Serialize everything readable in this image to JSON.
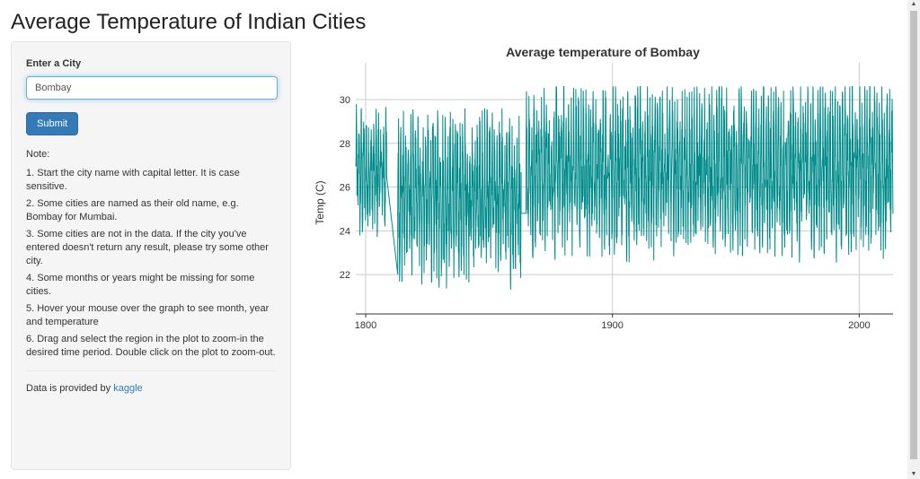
{
  "page": {
    "title": "Average Temperature of Indian Cities"
  },
  "sidebar": {
    "city_label": "Enter a City",
    "city_value": "Bombay",
    "submit_label": "Submit",
    "note_heading": "Note:",
    "notes": [
      "1. Start the city name with capital letter. It is case sensitive.",
      "2. Some cities are named as their old name, e.g. Bombay for Mumbai.",
      "3. Some cities are not in the data. If the city you've entered doesn't return any result, please try some other city.",
      "4. Some months or years might be missing for some cities.",
      "5. Hover your mouse over the graph to see month, year and temperature",
      "6. Drag and select the region in the plot to zoom-in the desired time period. Double click on the plot to zoom-out."
    ],
    "footer_prefix": "Data is provided by ",
    "footer_link": "kaggle"
  },
  "chart_data": {
    "type": "line",
    "title": "Average temperature of Bombay",
    "xlabel": "",
    "ylabel": "Temp (C)",
    "xlim": [
      1796,
      2013.7
    ],
    "ylim": [
      20.2,
      31.6
    ],
    "x_ticks": [
      1800,
      1900,
      2000
    ],
    "y_ticks": [
      22,
      24,
      26,
      28,
      30
    ],
    "x_tick_labels": [
      "1800",
      "1900",
      "2000"
    ],
    "y_tick_labels": [
      "22",
      "24",
      "26",
      "28",
      "30"
    ],
    "grid": true,
    "line_color": "#008b8b",
    "series": [
      {
        "description_note": "monthly average temperatures, approx. 1796-2013",
        "segments": [
          {
            "start": 1796.0,
            "end": 1808.5,
            "min": 23.0,
            "max": 29.8,
            "mean": 26.6
          },
          {
            "start": 1808.5,
            "end": 1813.0,
            "min": 22.0,
            "max": 26.5,
            "mean": 24.3
          },
          {
            "start": 1813.0,
            "end": 1863.0,
            "min": 21.0,
            "max": 29.6,
            "mean": 25.6
          },
          {
            "start": 1863.0,
            "end": 1865.0,
            "min": 24.8,
            "max": 24.9,
            "mean": 24.8
          },
          {
            "start": 1865.0,
            "end": 2013.7,
            "min": 22.0,
            "max": 30.6,
            "mean": 26.8
          }
        ]
      }
    ]
  }
}
